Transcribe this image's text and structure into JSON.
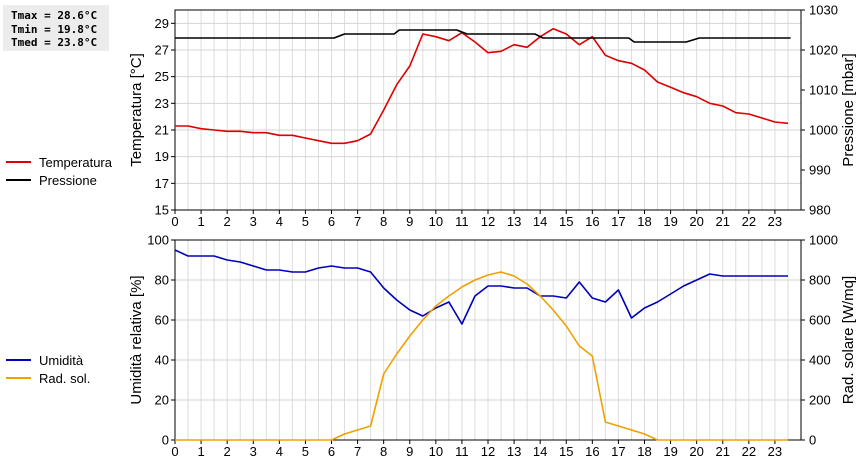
{
  "stats": {
    "tmax": "Tmax = 28.6°C",
    "tmin": "Tmin = 19.8°C",
    "tmed": "Tmed = 23.8°C"
  },
  "legend_top": [
    {
      "label": "Temperatura",
      "color": "#dd0000"
    },
    {
      "label": "Pressione",
      "color": "#000000"
    }
  ],
  "legend_bottom": [
    {
      "label": "Umidità",
      "color": "#0000bb"
    },
    {
      "label": "Rad. sol.",
      "color": "#f0a000"
    }
  ],
  "chart_data": [
    {
      "type": "line",
      "ylabel": "Temperatura [°C]",
      "y2label": "Pressione [mbar]",
      "xlim": [
        0,
        24
      ],
      "xticks": [
        0,
        1,
        2,
        3,
        4,
        5,
        6,
        7,
        8,
        9,
        10,
        11,
        12,
        13,
        14,
        15,
        16,
        17,
        18,
        19,
        20,
        21,
        22,
        23
      ],
      "ylim": [
        15,
        30
      ],
      "yticks": [
        15,
        17,
        19,
        21,
        23,
        25,
        27,
        29
      ],
      "y2lim": [
        980,
        1030
      ],
      "y2ticks": [
        980,
        990,
        1000,
        1010,
        1020,
        1030
      ],
      "grid": true,
      "series": [
        {
          "name": "Temperatura",
          "axis": "left",
          "color": "#dd0000",
          "x": [
            0,
            0.5,
            1,
            1.5,
            2,
            2.5,
            3,
            3.5,
            4,
            4.5,
            5,
            5.5,
            6,
            6.5,
            7,
            7.5,
            8,
            8.5,
            9,
            9.5,
            10,
            10.5,
            11,
            11.5,
            12,
            12.5,
            13,
            13.5,
            14,
            14.5,
            15,
            15.5,
            16,
            16.5,
            17,
            17.5,
            18,
            18.5,
            19,
            19.5,
            20,
            20.5,
            21,
            21.5,
            22,
            22.5,
            23,
            23.5
          ],
          "values": [
            21.3,
            21.3,
            21.1,
            21.0,
            20.9,
            20.9,
            20.8,
            20.8,
            20.6,
            20.6,
            20.4,
            20.2,
            20.0,
            20.0,
            20.2,
            20.7,
            22.5,
            24.4,
            25.8,
            28.2,
            28.0,
            27.7,
            28.3,
            27.6,
            26.8,
            26.9,
            27.4,
            27.2,
            28.0,
            28.6,
            28.2,
            27.4,
            28.0,
            26.6,
            26.2,
            26.0,
            25.5,
            24.6,
            24.2,
            23.8,
            23.5,
            23.0,
            22.8,
            22.3,
            22.2,
            21.9,
            21.6,
            21.5
          ]
        },
        {
          "name": "Pressione",
          "axis": "right",
          "color": "#000000",
          "x": [
            0,
            6.1,
            6.5,
            8.4,
            8.6,
            10.8,
            11.2,
            13.8,
            14.1,
            17.4,
            17.6,
            19.6,
            20.1,
            23.6
          ],
          "values": [
            1023,
            1023,
            1024,
            1024,
            1025,
            1025,
            1024,
            1024,
            1023,
            1023,
            1022,
            1022,
            1023,
            1023
          ]
        }
      ]
    },
    {
      "type": "line",
      "ylabel": "Umidità relativa [%]",
      "y2label": "Rad. solare [W/mq]",
      "xlim": [
        0,
        24
      ],
      "xticks": [
        0,
        1,
        2,
        3,
        4,
        5,
        6,
        7,
        8,
        9,
        10,
        11,
        12,
        13,
        14,
        15,
        16,
        17,
        18,
        19,
        20,
        21,
        22,
        23
      ],
      "ylim": [
        0,
        100
      ],
      "yticks": [
        0,
        20,
        40,
        60,
        80,
        100
      ],
      "y2lim": [
        0,
        1000
      ],
      "y2ticks": [
        0,
        200,
        400,
        600,
        800,
        1000
      ],
      "grid": true,
      "series": [
        {
          "name": "Umidità",
          "axis": "left",
          "color": "#0000bb",
          "x": [
            0,
            0.5,
            1,
            1.5,
            2,
            2.5,
            3,
            3.5,
            4,
            4.5,
            5,
            5.5,
            6,
            6.5,
            7,
            7.5,
            8,
            8.5,
            9,
            9.5,
            10,
            10.5,
            11,
            11.5,
            12,
            12.5,
            13,
            13.5,
            14,
            14.5,
            15,
            15.5,
            16,
            16.5,
            17,
            17.5,
            18,
            18.5,
            19,
            19.5,
            20,
            20.5,
            21,
            21.5,
            22,
            22.5,
            23,
            23.5
          ],
          "values": [
            95,
            92,
            92,
            92,
            90,
            89,
            87,
            85,
            85,
            84,
            84,
            86,
            87,
            86,
            86,
            84,
            76,
            70,
            65,
            62,
            66,
            69,
            58,
            72,
            77,
            77,
            76,
            76,
            72,
            72,
            71,
            79,
            71,
            69,
            75,
            61,
            66,
            69,
            73,
            77,
            80,
            83,
            82,
            82,
            82,
            82,
            82,
            82
          ]
        },
        {
          "name": "Rad. sol.",
          "axis": "right",
          "color": "#f0a000",
          "x": [
            0,
            6,
            6.5,
            7,
            7.5,
            8,
            8.5,
            9,
            9.5,
            10,
            10.5,
            11,
            11.5,
            12,
            12.5,
            13,
            13.5,
            14,
            14.5,
            15,
            15.5,
            16,
            16.5,
            17,
            17.5,
            18,
            18.5,
            19,
            20,
            21,
            22,
            23,
            23.5
          ],
          "values": [
            0,
            0,
            30,
            50,
            70,
            330,
            430,
            520,
            600,
            670,
            720,
            765,
            800,
            825,
            840,
            820,
            780,
            720,
            650,
            570,
            470,
            420,
            90,
            70,
            50,
            30,
            0,
            0,
            0,
            0,
            0,
            0,
            0
          ]
        }
      ]
    }
  ]
}
